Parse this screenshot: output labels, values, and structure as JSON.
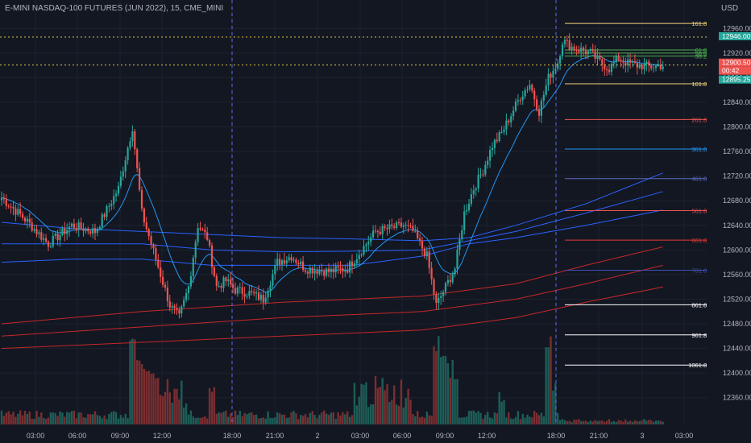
{
  "header": {
    "title": "E-MINI NASDAQ-100 FUTURES (JUN 2022), 15, CME_MINI",
    "currency": "USD"
  },
  "colors": {
    "bg": "#131722",
    "up": "#26a69a",
    "down": "#ef5350",
    "grid": "#1e222d",
    "axis_text": "#b2b5be",
    "volume_up": "#1d5e57",
    "volume_down": "#7a2e31",
    "ma_blue": "#2962ff",
    "ma_red": "#c62828",
    "separator": "#5b6ef5"
  },
  "y_axis": {
    "min": 12340,
    "max": 12980,
    "ticks": [
      12360,
      12400,
      12440,
      12480,
      12520,
      12560,
      12600,
      12640,
      12680,
      12720,
      12760,
      12800,
      12840,
      12880,
      12920,
      12960
    ]
  },
  "x_axis": {
    "labels": [
      "03:00",
      "06:00",
      "09:00",
      "12:00",
      "18:00",
      "21:00",
      "2",
      "03:00",
      "06:00",
      "09:00",
      "12:00",
      "18:00",
      "21:00",
      "3",
      "03:00"
    ]
  },
  "price_labels": [
    {
      "text": "12946.00",
      "color": "#26a69a"
    },
    {
      "text": "12900.50",
      "color": "#ef5350"
    },
    {
      "text": "00:42",
      "color": "#ef5350"
    },
    {
      "text": "12895.25",
      "color": "#26a69a"
    }
  ],
  "fib_levels": [
    {
      "label": "161.80%",
      "price": 12968,
      "color": "#f5d57a"
    },
    {
      "label": "61.80%",
      "price": 12925,
      "color": "#4caf50"
    },
    {
      "label": "50.00%",
      "price": 12920,
      "color": "#4caf50"
    },
    {
      "label": "38.20%",
      "price": 12915,
      "color": "#4caf50"
    },
    {
      "label": "161.80%",
      "price": 12870,
      "color": "#f5d57a"
    },
    {
      "label": "261.80%",
      "price": 12812,
      "color": "#ef5350"
    },
    {
      "label": "361.80%",
      "price": 12764,
      "color": "#2196f3"
    },
    {
      "label": "461.80%",
      "price": 12716,
      "color": "#5c6bc0"
    },
    {
      "label": "561.80%",
      "price": 12664,
      "color": "#ef5350"
    },
    {
      "label": "661.80%",
      "price": 12616,
      "color": "#e53935"
    },
    {
      "label": "761.80%",
      "price": 12567,
      "color": "#3f51b5"
    },
    {
      "label": "861.80%",
      "price": 12511,
      "color": "#ffffff"
    },
    {
      "label": "961.80%",
      "price": 12462,
      "color": "#ffffff"
    },
    {
      "label": "1061.80%",
      "price": 12413,
      "color": "#ffffff"
    }
  ],
  "chart_data": {
    "type": "candlestick",
    "title": "E-MINI NASDAQ-100 FUTURES (JUN 2022), 15, CME_MINI",
    "ylabel": "USD",
    "ylim": [
      12340,
      12980
    ],
    "x_ticks": [
      "03:00",
      "06:00",
      "09:00",
      "12:00",
      "18:00",
      "21:00",
      "2",
      "03:00",
      "06:00",
      "09:00",
      "12:00",
      "18:00",
      "21:00",
      "3",
      "03:00"
    ],
    "anchors": [
      [
        0,
        12685
      ],
      [
        10,
        12650
      ],
      [
        20,
        12610
      ],
      [
        30,
        12640
      ],
      [
        40,
        12630
      ],
      [
        50,
        12700
      ],
      [
        56,
        12800
      ],
      [
        60,
        12660
      ],
      [
        64,
        12610
      ],
      [
        68,
        12560
      ],
      [
        72,
        12510
      ],
      [
        76,
        12490
      ],
      [
        80,
        12540
      ],
      [
        84,
        12640
      ],
      [
        88,
        12620
      ],
      [
        92,
        12540
      ],
      [
        96,
        12550
      ],
      [
        100,
        12535
      ],
      [
        106,
        12530
      ],
      [
        112,
        12520
      ],
      [
        118,
        12580
      ],
      [
        124,
        12590
      ],
      [
        130,
        12570
      ],
      [
        140,
        12565
      ],
      [
        148,
        12570
      ],
      [
        154,
        12600
      ],
      [
        160,
        12630
      ],
      [
        166,
        12635
      ],
      [
        172,
        12640
      ],
      [
        176,
        12630
      ],
      [
        182,
        12590
      ],
      [
        186,
        12510
      ],
      [
        190,
        12540
      ],
      [
        194,
        12570
      ],
      [
        198,
        12660
      ],
      [
        202,
        12700
      ],
      [
        206,
        12730
      ],
      [
        210,
        12770
      ],
      [
        214,
        12790
      ],
      [
        218,
        12820
      ],
      [
        222,
        12850
      ],
      [
        226,
        12870
      ],
      [
        230,
        12825
      ],
      [
        234,
        12880
      ],
      [
        238,
        12905
      ],
      [
        240,
        12940
      ],
      [
        244,
        12930
      ],
      [
        248,
        12925
      ],
      [
        252,
        12920
      ],
      [
        256,
        12905
      ],
      [
        260,
        12895
      ],
      [
        264,
        12912
      ],
      [
        268,
        12903
      ],
      [
        272,
        12900
      ],
      [
        278,
        12898
      ],
      [
        283,
        12900
      ]
    ],
    "notable_values": {
      "last_price": 12900.5,
      "high_marker": 12946,
      "low_marker": 12895.25
    },
    "moving_averages": [
      {
        "color": "#2962ff",
        "values": [
          [
            0,
            12645
          ],
          [
            30,
            12635
          ],
          [
            60,
            12630
          ],
          [
            90,
            12625
          ],
          [
            120,
            12620
          ],
          [
            150,
            12618
          ],
          [
            180,
            12615
          ],
          [
            200,
            12620
          ],
          [
            220,
            12640
          ],
          [
            250,
            12675
          ],
          [
            283,
            12725
          ]
        ]
      },
      {
        "color": "#2962ff",
        "values": [
          [
            0,
            12610
          ],
          [
            30,
            12610
          ],
          [
            60,
            12610
          ],
          [
            90,
            12600
          ],
          [
            120,
            12597
          ],
          [
            150,
            12598
          ],
          [
            180,
            12600
          ],
          [
            200,
            12615
          ],
          [
            220,
            12630
          ],
          [
            250,
            12660
          ],
          [
            283,
            12695
          ]
        ]
      },
      {
        "color": "#2962ff",
        "values": [
          [
            0,
            12580
          ],
          [
            30,
            12585
          ],
          [
            60,
            12585
          ],
          [
            90,
            12575
          ],
          [
            120,
            12575
          ],
          [
            150,
            12575
          ],
          [
            180,
            12590
          ],
          [
            200,
            12610
          ],
          [
            220,
            12620
          ],
          [
            250,
            12640
          ],
          [
            283,
            12665
          ]
        ]
      },
      {
        "color": "#c62828",
        "values": [
          [
            0,
            12480
          ],
          [
            60,
            12500
          ],
          [
            120,
            12515
          ],
          [
            180,
            12525
          ],
          [
            220,
            12545
          ],
          [
            250,
            12575
          ],
          [
            283,
            12605
          ]
        ]
      },
      {
        "color": "#c62828",
        "values": [
          [
            0,
            12460
          ],
          [
            60,
            12475
          ],
          [
            120,
            12490
          ],
          [
            180,
            12500
          ],
          [
            220,
            12520
          ],
          [
            250,
            12545
          ],
          [
            283,
            12575
          ]
        ]
      },
      {
        "color": "#c62828",
        "values": [
          [
            0,
            12440
          ],
          [
            60,
            12450
          ],
          [
            120,
            12460
          ],
          [
            180,
            12470
          ],
          [
            220,
            12490
          ],
          [
            250,
            12515
          ],
          [
            283,
            12540
          ]
        ]
      }
    ]
  }
}
